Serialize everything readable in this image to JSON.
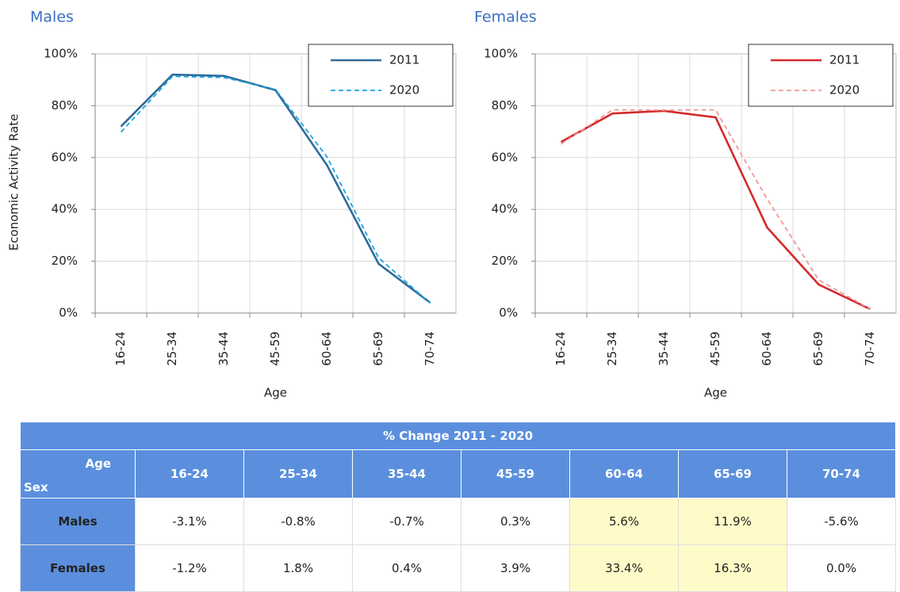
{
  "chart_data": [
    {
      "type": "line",
      "title": "Males",
      "y_label": "Economic Activity Rate",
      "x_label": "Age",
      "categories": [
        "16-24",
        "25-34",
        "35-44",
        "45-59",
        "60-64",
        "65-69",
        "70-74"
      ],
      "series": [
        {
          "name": "2011",
          "color": "#2f6b9a",
          "line_style": "solid",
          "values": [
            72,
            92,
            91.5,
            86,
            57,
            19,
            4
          ]
        },
        {
          "name": "2020",
          "color": "#1ea3dc",
          "line_style": "dashed",
          "values": [
            69.8,
            91.3,
            90.9,
            86.3,
            60.2,
            21.3,
            3.8
          ]
        }
      ],
      "ylim": [
        0,
        100
      ],
      "yticks": [
        {
          "value": 0,
          "label": "0%"
        },
        {
          "value": 20,
          "label": "20%"
        },
        {
          "value": 40,
          "label": "40%"
        },
        {
          "value": 60,
          "label": "60%"
        },
        {
          "value": 80,
          "label": "80%"
        },
        {
          "value": 100,
          "label": "100%"
        }
      ],
      "grid": true,
      "legend": "upper right"
    },
    {
      "type": "line",
      "title": "Females",
      "x_label": "Age",
      "categories": [
        "16-24",
        "25-34",
        "35-44",
        "45-59",
        "60-64",
        "65-69",
        "70-74"
      ],
      "series": [
        {
          "name": "2011",
          "color": "#d42a2a",
          "line_style": "solid",
          "values": [
            66,
            77,
            78,
            75.5,
            33,
            11,
            1.5
          ]
        },
        {
          "name": "2020",
          "color": "#ee9a9a",
          "line_style": "dashed",
          "values": [
            65.2,
            78.4,
            78.3,
            78.4,
            44,
            12.8,
            1.5
          ]
        }
      ],
      "ylim": [
        0,
        100
      ],
      "yticks": [
        {
          "value": 0,
          "label": "0%"
        },
        {
          "value": 20,
          "label": "20%"
        },
        {
          "value": 40,
          "label": "40%"
        },
        {
          "value": 60,
          "label": "60%"
        },
        {
          "value": 80,
          "label": "80%"
        },
        {
          "value": 100,
          "label": "100%"
        }
      ],
      "grid": true,
      "legend": "upper right"
    }
  ],
  "table": {
    "title": "% Change 2011 - 2020",
    "corner": {
      "column": "Age",
      "row": "Sex"
    },
    "columns": [
      "16-24",
      "25-34",
      "35-44",
      "45-59",
      "60-64",
      "65-69",
      "70-74"
    ],
    "rows": [
      {
        "label": "Males",
        "cells": [
          "-3.1%",
          "-0.8%",
          "-0.7%",
          "0.3%",
          "5.6%",
          "11.9%",
          "-5.6%"
        ]
      },
      {
        "label": "Females",
        "cells": [
          "-1.2%",
          "1.8%",
          "0.4%",
          "3.9%",
          "33.4%",
          "16.3%",
          "0.0%"
        ]
      }
    ]
  }
}
